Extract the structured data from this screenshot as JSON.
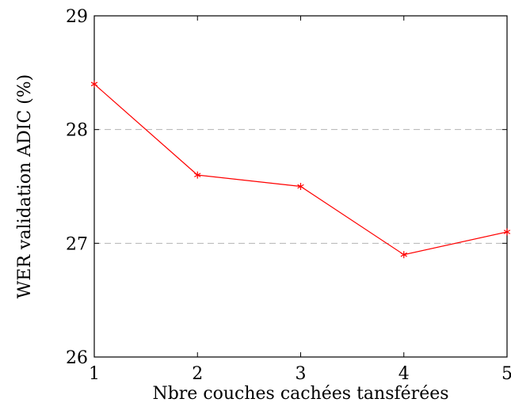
{
  "chart_data": {
    "type": "line",
    "title": "",
    "xlabel": "Nbre couches cachées tansférées",
    "ylabel": "WER validation ADIC (%)",
    "xlim": [
      1,
      5
    ],
    "ylim": [
      26,
      29
    ],
    "xticks": [
      1,
      2,
      3,
      4,
      5
    ],
    "yticks": [
      26,
      27,
      28,
      29
    ],
    "grid": "horizontal-dashed",
    "series": [
      {
        "color": "#ff0000",
        "marker": "star",
        "x": [
          1,
          2,
          3,
          4,
          5
        ],
        "y": [
          28.4,
          27.6,
          27.5,
          26.9,
          27.1
        ]
      }
    ]
  }
}
